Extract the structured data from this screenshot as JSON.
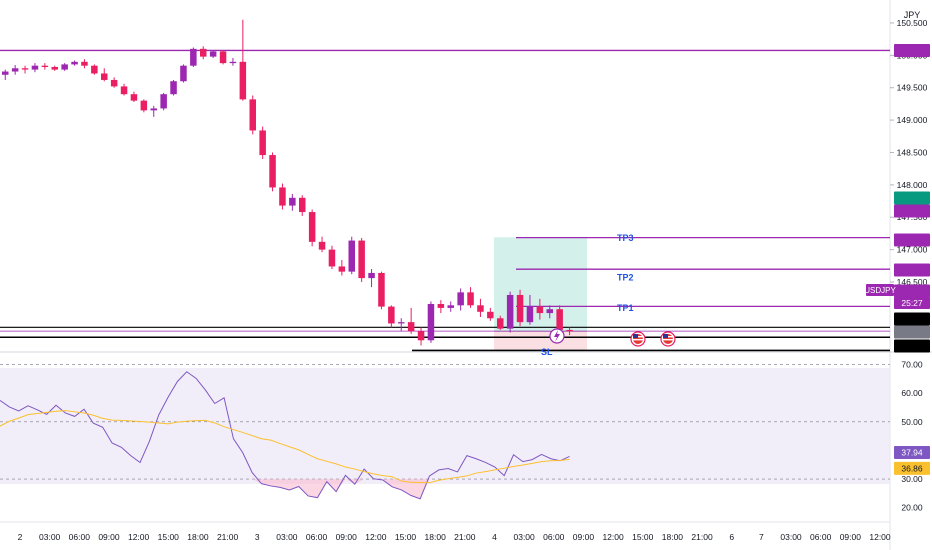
{
  "chart_data": [
    {
      "type": "candlestick",
      "currency": "JPY",
      "symbol": "USDJPY",
      "countdown": "25:27",
      "y_ticks": [
        "150.500",
        "150.000",
        "149.500",
        "149.000",
        "148.500",
        "148.000",
        "147.500",
        "147.000",
        "146.500"
      ],
      "ylim": [
        145.45,
        150.7
      ],
      "candles": [
        [
          149.7,
          149.78,
          149.62,
          149.75
        ],
        [
          149.75,
          149.85,
          149.7,
          149.8
        ],
        [
          149.8,
          149.84,
          149.72,
          149.78
        ],
        [
          149.78,
          149.88,
          149.74,
          149.84
        ],
        [
          149.84,
          149.88,
          149.78,
          149.82
        ],
        [
          149.82,
          149.84,
          149.76,
          149.78
        ],
        [
          149.78,
          149.88,
          149.76,
          149.86
        ],
        [
          149.86,
          149.92,
          149.84,
          149.9
        ],
        [
          149.9,
          149.94,
          149.8,
          149.84
        ],
        [
          149.84,
          149.86,
          149.7,
          149.72
        ],
        [
          149.72,
          149.8,
          149.6,
          149.62
        ],
        [
          149.62,
          149.66,
          149.5,
          149.52
        ],
        [
          149.52,
          149.56,
          149.38,
          149.4
        ],
        [
          149.4,
          149.44,
          149.28,
          149.3
        ],
        [
          149.3,
          149.32,
          149.12,
          149.15
        ],
        [
          149.15,
          149.22,
          149.05,
          149.18
        ],
        [
          149.18,
          149.42,
          149.15,
          149.4
        ],
        [
          149.4,
          149.62,
          149.38,
          149.6
        ],
        [
          149.6,
          149.86,
          149.58,
          149.84
        ],
        [
          149.84,
          150.12,
          149.82,
          150.1
        ],
        [
          150.1,
          150.14,
          149.94,
          149.98
        ],
        [
          149.98,
          150.08,
          149.96,
          150.06
        ],
        [
          150.06,
          150.08,
          149.86,
          149.88
        ],
        [
          149.88,
          149.96,
          149.84,
          149.9
        ],
        [
          149.9,
          150.55,
          149.3,
          149.32
        ],
        [
          149.32,
          149.38,
          148.78,
          148.84
        ],
        [
          148.84,
          148.9,
          148.4,
          148.46
        ],
        [
          148.46,
          148.5,
          147.9,
          147.96
        ],
        [
          147.96,
          148.02,
          147.62,
          147.68
        ],
        [
          147.68,
          147.86,
          147.6,
          147.8
        ],
        [
          147.8,
          147.84,
          147.52,
          147.58
        ],
        [
          147.58,
          147.62,
          147.05,
          147.12
        ],
        [
          147.12,
          147.2,
          146.96,
          147.0
        ],
        [
          147.0,
          147.06,
          146.7,
          146.74
        ],
        [
          146.74,
          146.84,
          146.6,
          146.66
        ],
        [
          146.66,
          147.2,
          146.62,
          147.14
        ],
        [
          147.14,
          147.18,
          146.5,
          146.56
        ],
        [
          146.56,
          146.7,
          146.42,
          146.64
        ],
        [
          146.64,
          146.66,
          146.08,
          146.12
        ],
        [
          146.12,
          146.14,
          145.8,
          145.86
        ],
        [
          145.86,
          145.94,
          145.74,
          145.88
        ],
        [
          145.88,
          146.1,
          145.7,
          145.74
        ],
        [
          145.74,
          145.8,
          145.52,
          145.6
        ],
        [
          145.6,
          146.2,
          145.56,
          146.16
        ],
        [
          146.16,
          146.22,
          146.02,
          146.1
        ],
        [
          146.1,
          146.2,
          146.04,
          146.14
        ],
        [
          146.14,
          146.4,
          146.06,
          146.34
        ],
        [
          146.34,
          146.42,
          146.1,
          146.14
        ],
        [
          146.14,
          146.24,
          145.96,
          146.04
        ],
        [
          146.04,
          146.1,
          145.9,
          145.94
        ],
        [
          145.94,
          145.98,
          145.76,
          145.78
        ],
        [
          145.78,
          146.35,
          145.72,
          146.3
        ],
        [
          146.3,
          146.38,
          145.82,
          145.88
        ],
        [
          145.88,
          146.3,
          145.84,
          146.12
        ],
        [
          146.12,
          146.24,
          145.92,
          146.02
        ],
        [
          146.02,
          146.14,
          145.94,
          146.08
        ],
        [
          146.08,
          146.14,
          145.7,
          145.76
        ],
        [
          145.76,
          145.8,
          145.68,
          145.74
        ]
      ],
      "horizontal_levels": [
        {
          "label": "150.075",
          "value": 150.075,
          "color": "#9c27b0"
        },
        {
          "label": "147.195",
          "value": 147.195,
          "color": "#089981"
        },
        {
          "label": "147.185",
          "value": 147.185,
          "color": "#9c27b0"
        },
        {
          "label": "146.698",
          "value": 146.698,
          "color": "#9c27b0"
        },
        {
          "label": "146.124",
          "value": 146.124,
          "color": "#9c27b0"
        },
        {
          "label": "145.741",
          "value": 145.741,
          "color": "#9c27b0"
        },
        {
          "label": "145.647",
          "value": 145.647,
          "color": "#000000"
        },
        {
          "label": "145.644",
          "value": 145.644,
          "color": "#787b86"
        },
        {
          "label": "145.443",
          "value": 145.443,
          "color": "#000000"
        }
      ],
      "annotations": [
        {
          "text": "TP3",
          "color": "#1e53e5"
        },
        {
          "text": "TP2",
          "color": "#1e53e5"
        },
        {
          "text": "TP1",
          "color": "#1e53e5"
        },
        {
          "text": "SL",
          "color": "#1e53e5"
        }
      ],
      "risk_reward": {
        "entry": 145.74,
        "target": 147.19,
        "stop": 145.44
      }
    },
    {
      "type": "line",
      "y_ticks": [
        "70.00",
        "60.00",
        "50.00",
        "40.00",
        "30.00",
        "20.00"
      ],
      "ylim": [
        15,
        73
      ],
      "bands": [
        70,
        50,
        30
      ],
      "series": [
        {
          "values": [
            57.5,
            55.2,
            53.8,
            55.6,
            54.2,
            52.6,
            55.8,
            53.1,
            51.9,
            54.4,
            49.5,
            48.1,
            42.6,
            41.1,
            38.2,
            35.8,
            43.2,
            52.4,
            58.6,
            64.1,
            67.5,
            65.2,
            61.1,
            56.4,
            58.4,
            44.1,
            39.2,
            32.3,
            28.4,
            27.6,
            27.1,
            26.2,
            27.4,
            24.1,
            23.5,
            29.1,
            25.6,
            31.3,
            28.2,
            33.5,
            30.1,
            29.7,
            27.3,
            26.2,
            24.3,
            23.1,
            31.1,
            33.2,
            33.7,
            32.5,
            38.2,
            37.1,
            35.8,
            34.2,
            31.2,
            38.5,
            36.1,
            36.8,
            38.6,
            37.1,
            36.4,
            37.9
          ]
        },
        {
          "values": [
            48.5,
            50.2,
            51.3,
            52.5,
            52.9,
            53.3,
            53.7,
            53.9,
            53.5,
            53.1,
            52.3,
            51.2,
            50.6,
            50.5,
            50.3,
            50.1,
            49.9,
            49.6,
            49.3,
            49.9,
            50.2,
            50.4,
            50.5,
            49.6,
            48.3,
            47.3,
            46.3,
            45.2,
            44.1,
            43.6,
            42.4,
            41.3,
            40.2,
            38.6,
            37.1,
            36.2,
            35.3,
            34.2,
            33.5,
            32.6,
            31.8,
            31.2,
            30.8,
            29.3,
            28.9,
            28.8,
            28.7,
            29.6,
            30.1,
            30.6,
            31.1,
            32.1,
            32.6,
            33.2,
            33.8,
            34.4,
            34.9,
            35.5,
            36.1,
            36.4,
            36.5,
            36.9
          ]
        }
      ],
      "value_labels": [
        {
          "text": "37.94",
          "color": "#7e57c2"
        },
        {
          "text": "36.86",
          "color": "#fbc02d"
        }
      ]
    }
  ],
  "x_ticks": [
    "2",
    "03:00",
    "06:00",
    "09:00",
    "12:00",
    "15:00",
    "18:00",
    "21:00",
    "3",
    "03:00",
    "06:00",
    "09:00",
    "12:00",
    "15:00",
    "18:00",
    "21:00",
    "4",
    "03:00",
    "06:00",
    "09:00",
    "12:00",
    "15:00",
    "18:00",
    "21:00",
    "6",
    "7",
    "03:00",
    "06:00",
    "09:00",
    "12:00"
  ],
  "colors": {
    "bull": "#9c27b0",
    "bear": "#e91e63",
    "target_zone": "#d3f0ea",
    "stop_zone": "#fbe0e3",
    "rsi": "#7e57c2",
    "rsi_ma": "#fbc02d",
    "rsi_bg": "#ede7f6"
  },
  "icons": [
    "lightning-icon",
    "us-flag-icon",
    "us-flag-icon"
  ]
}
